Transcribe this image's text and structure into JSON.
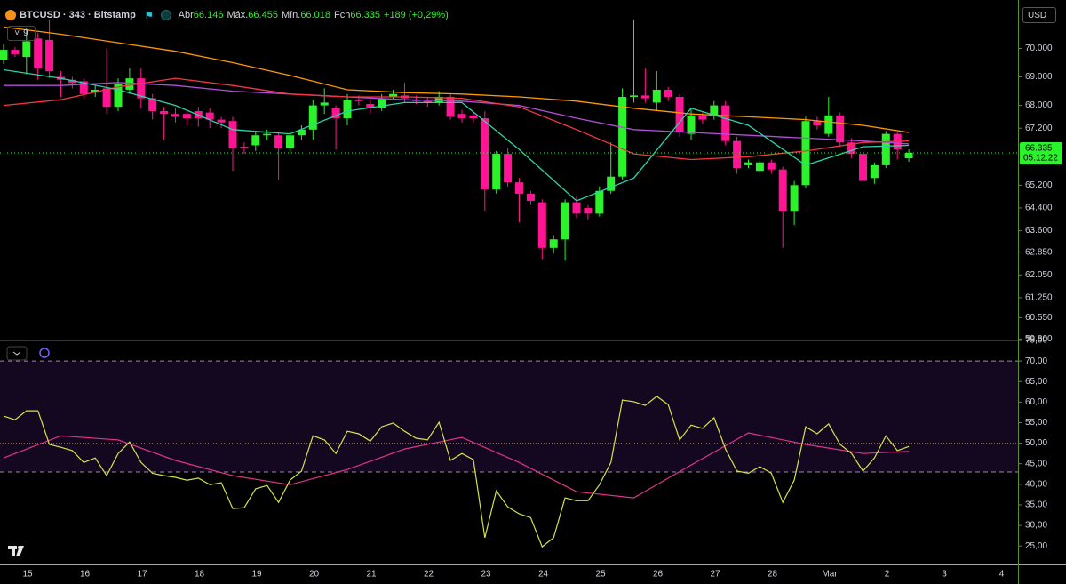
{
  "header": {
    "symbol": "BTCUSD · 343 · Bitstamp",
    "ohlc": [
      {
        "label": "Abr",
        "value": "66.146"
      },
      {
        "label": "Máx.",
        "value": "66.455"
      },
      {
        "label": "Mín.",
        "value": "66.018"
      },
      {
        "label": "Fch",
        "value": "66.335"
      }
    ],
    "change": "+189 (+0,29%)",
    "collapsed_count": "9",
    "currency": "USD"
  },
  "chart_data": [
    {
      "type": "candlestick",
      "up_color": "#2cf22c",
      "down_color": "#ff1493",
      "candles": {
        "open": [
          69600,
          69950,
          69700,
          70350,
          70300,
          69000,
          68900,
          68850,
          68450,
          68600,
          67950,
          68550,
          68950,
          68250,
          67800,
          67700,
          67700,
          67800,
          67750,
          67500,
          67450,
          66550,
          66600,
          66950,
          66950,
          66500,
          66950,
          67150,
          68000,
          67900,
          67550,
          68200,
          68050,
          67900,
          68300,
          68350,
          68200,
          68150,
          68100,
          68300,
          67700,
          67650,
          67550,
          65050,
          66300,
          65300,
          64900,
          64600,
          63000,
          63300,
          64600,
          64400,
          64200,
          65000,
          65500,
          68300,
          68350,
          68100,
          68550,
          68300,
          67000,
          67650,
          67650,
          68000,
          66750,
          65900,
          65700,
          66000,
          65750,
          64300,
          65200,
          67450,
          67000,
          67650,
          66700,
          66300,
          65450,
          65900,
          67000,
          66146
        ],
        "high": [
          70150,
          70050,
          70700,
          70550,
          71000,
          69200,
          69000,
          68950,
          68700,
          70000,
          68950,
          69300,
          69300,
          68400,
          67950,
          67900,
          67850,
          67950,
          67900,
          67600,
          67600,
          66700,
          67100,
          67150,
          67050,
          67100,
          67300,
          68200,
          68600,
          68000,
          68400,
          68350,
          68200,
          68400,
          68550,
          68800,
          68350,
          68300,
          68500,
          68400,
          67850,
          67750,
          67800,
          66400,
          66500,
          65450,
          65000,
          64700,
          63450,
          64700,
          64800,
          64500,
          65150,
          66700,
          68600,
          71000,
          69300,
          69200,
          68650,
          68400,
          67900,
          67750,
          68150,
          68150,
          66900,
          66100,
          66150,
          66100,
          65850,
          65350,
          67600,
          67600,
          68300,
          67750,
          66850,
          66400,
          66000,
          67100,
          67050,
          66455
        ],
        "low": [
          69450,
          69700,
          69100,
          68900,
          68950,
          68300,
          68600,
          68250,
          68300,
          67700,
          67800,
          68400,
          67900,
          67500,
          66800,
          67400,
          67300,
          67250,
          67200,
          67200,
          65700,
          66300,
          66400,
          66800,
          65400,
          66350,
          66800,
          66800,
          67700,
          66450,
          67300,
          68000,
          67700,
          67800,
          68200,
          68100,
          68050,
          67950,
          68000,
          67500,
          67400,
          67400,
          64300,
          64900,
          65150,
          63900,
          64500,
          62600,
          62800,
          62550,
          64050,
          64000,
          64100,
          64900,
          65400,
          68100,
          68100,
          67800,
          68150,
          66900,
          66800,
          67350,
          67500,
          66600,
          65600,
          65800,
          65600,
          65600,
          63000,
          63800,
          65100,
          67150,
          66900,
          66550,
          66150,
          65200,
          65250,
          65800,
          66100,
          66018
        ],
        "close": [
          69950,
          69800,
          70250,
          69300,
          69200,
          68900,
          68800,
          68400,
          68550,
          67950,
          68750,
          68950,
          68250,
          67800,
          67700,
          67600,
          67550,
          67550,
          67500,
          67400,
          66500,
          66500,
          66950,
          67000,
          66500,
          66950,
          67150,
          68000,
          68100,
          67550,
          68200,
          68150,
          67900,
          68250,
          68400,
          68250,
          68150,
          68100,
          68300,
          67600,
          67550,
          67550,
          65050,
          66300,
          65300,
          64900,
          64650,
          63000,
          63300,
          64600,
          64200,
          64200,
          65000,
          65500,
          68300,
          68350,
          68250,
          68550,
          68300,
          67050,
          67650,
          67500,
          68000,
          66750,
          65800,
          66000,
          66000,
          65750,
          64300,
          65200,
          67450,
          67300,
          67650,
          66700,
          66300,
          65350,
          65900,
          67000,
          66450,
          66335
        ]
      },
      "ma_lines": [
        {
          "color": "#ff9800",
          "x": [
            0,
            5,
            10,
            15,
            20,
            25,
            30,
            35,
            40,
            45,
            50,
            55,
            60,
            65,
            70,
            75,
            79
          ],
          "values": [
            70750,
            70500,
            70200,
            69900,
            69500,
            69050,
            68550,
            68450,
            68400,
            68300,
            68150,
            67900,
            67700,
            67600,
            67500,
            67300,
            67050
          ]
        },
        {
          "color": "#b14fd8",
          "x": [
            0,
            5,
            10,
            15,
            20,
            25,
            30,
            35,
            40,
            45,
            50,
            55,
            60,
            65,
            70,
            75,
            79
          ],
          "values": [
            68700,
            68700,
            68800,
            68700,
            68500,
            68400,
            68300,
            68200,
            68150,
            68000,
            67550,
            67150,
            67050,
            66950,
            66850,
            66750,
            66650
          ]
        },
        {
          "color": "#f23645",
          "x": [
            0,
            5,
            10,
            15,
            20,
            25,
            30,
            35,
            40,
            45,
            50,
            55,
            60,
            65,
            70,
            75,
            79
          ],
          "values": [
            68000,
            68200,
            68650,
            68950,
            68700,
            68400,
            68300,
            68300,
            68250,
            67950,
            67150,
            66300,
            66100,
            66200,
            66400,
            66700,
            66750
          ]
        },
        {
          "color": "#2ad4a8",
          "x": [
            0,
            5,
            10,
            15,
            20,
            25,
            30,
            35,
            40,
            45,
            50,
            55,
            60,
            65,
            70,
            75,
            79
          ],
          "values": [
            69250,
            68950,
            68550,
            68000,
            67150,
            67000,
            67800,
            68100,
            68100,
            66450,
            64650,
            65450,
            67900,
            67300,
            65900,
            66550,
            66600
          ]
        }
      ],
      "ylim": [
        59750,
        71700
      ],
      "yticks": [
        {
          "value": 70000,
          "label": "70.000"
        },
        {
          "value": 69000,
          "label": "69.000"
        },
        {
          "value": 68000,
          "label": "68.000"
        },
        {
          "value": 67200,
          "label": "67.200"
        },
        {
          "value": 65200,
          "label": "65.200"
        },
        {
          "value": 64400,
          "label": "64.400"
        },
        {
          "value": 63600,
          "label": "63.600"
        },
        {
          "value": 62850,
          "label": "62.850"
        },
        {
          "value": 62050,
          "label": "62.050"
        },
        {
          "value": 61250,
          "label": "61.250"
        },
        {
          "value": 60550,
          "label": "60.550"
        },
        {
          "value": 59800,
          "label": "59.800"
        }
      ],
      "last_price": {
        "value": 66335,
        "label": "66.335"
      },
      "countdown": "05:12:22",
      "time_labels": [
        "15",
        "16",
        "17",
        "18",
        "19",
        "20",
        "21",
        "22",
        "23",
        "24",
        "25",
        "26",
        "27",
        "28",
        "Mar",
        "2",
        "3",
        "4"
      ]
    },
    {
      "type": "line",
      "color": "#d4e34a",
      "ma_color": "#e0338a",
      "values": [
        56.6,
        55.7,
        57.9,
        57.9,
        49.7,
        49.0,
        48.2,
        45.3,
        46.4,
        42.1,
        47.5,
        50.3,
        45.3,
        42.7,
        42.1,
        41.7,
        41.0,
        41.5,
        39.9,
        40.4,
        34.1,
        34.3,
        38.9,
        39.7,
        35.6,
        41.0,
        43.2,
        51.8,
        50.8,
        47.5,
        52.9,
        52.3,
        50.5,
        54.0,
        54.9,
        52.9,
        51.2,
        50.8,
        55.1,
        45.8,
        47.5,
        46.0,
        27.0,
        38.4,
        34.5,
        32.8,
        31.9,
        24.8,
        27.0,
        36.7,
        36.0,
        36.0,
        39.9,
        45.3,
        60.5,
        60.1,
        59.2,
        61.4,
        59.4,
        50.8,
        54.4,
        53.6,
        56.2,
        48.6,
        43.2,
        42.7,
        44.3,
        42.7,
        35.6,
        41.0,
        54.0,
        52.3,
        54.7,
        49.7,
        47.5,
        43.2,
        46.4,
        51.8,
        48.2,
        49.2
      ],
      "ma": {
        "x": [
          0,
          5,
          10,
          15,
          20,
          25,
          30,
          35,
          40,
          45,
          50,
          55,
          60,
          65,
          70,
          75,
          79
        ],
        "values": [
          46.4,
          51.8,
          50.8,
          45.8,
          42.1,
          39.9,
          43.6,
          48.6,
          51.4,
          45.3,
          38.2,
          36.7,
          44.7,
          52.5,
          49.7,
          47.5,
          48.0
        ]
      },
      "bands": {
        "upper": 70,
        "middle": 50,
        "lower": 43
      },
      "ylim": [
        20.5,
        75
      ],
      "yticks": [
        {
          "value": 75,
          "label": "75,00"
        },
        {
          "value": 70,
          "label": "70,00"
        },
        {
          "value": 65,
          "label": "65,00"
        },
        {
          "value": 60,
          "label": "60,00"
        },
        {
          "value": 55,
          "label": "55,00"
        },
        {
          "value": 50,
          "label": "50,00"
        },
        {
          "value": 45,
          "label": "45,00"
        },
        {
          "value": 40,
          "label": "40,00"
        },
        {
          "value": 35,
          "label": "35,00"
        },
        {
          "value": 30,
          "label": "30,00"
        },
        {
          "value": 25,
          "label": "25,00"
        }
      ]
    }
  ]
}
